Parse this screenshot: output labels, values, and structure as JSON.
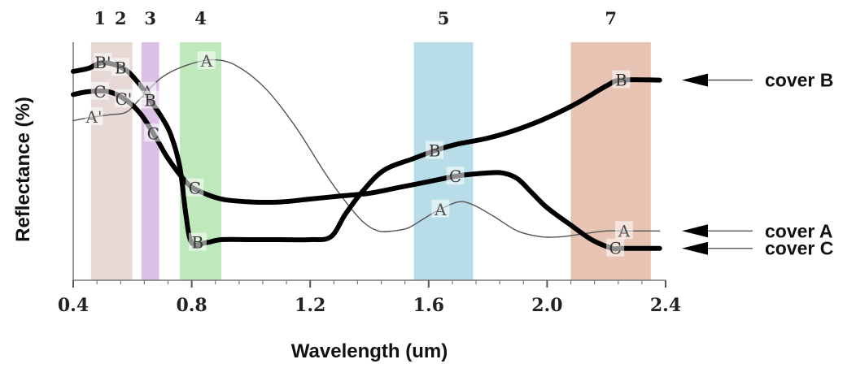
{
  "chart_data": {
    "type": "line",
    "xlabel": "Wavelength (um)",
    "ylabel": "Reflectance (%)",
    "xlim": [
      0.4,
      2.4
    ],
    "x_ticks": [
      "0.4",
      "0.8",
      "1.2",
      "1.6",
      "2.0",
      "2.4"
    ],
    "grid": false,
    "bands": [
      {
        "label": "1",
        "range": [
          0.46,
          0.52
        ],
        "color": "#e6d9d6"
      },
      {
        "label": "2",
        "range": [
          0.52,
          0.6
        ],
        "color": "#e6d9d6"
      },
      {
        "label": "3",
        "range": [
          0.63,
          0.69
        ],
        "color": "#dcc0e6"
      },
      {
        "label": "4",
        "range": [
          0.76,
          0.9
        ],
        "color": "#bfe8bd"
      },
      {
        "label": "5",
        "range": [
          1.55,
          1.75
        ],
        "color": "#b8dde8"
      },
      {
        "label": "7",
        "range": [
          2.08,
          2.35
        ],
        "color": "#e6c3b3"
      }
    ],
    "series": [
      {
        "name": "cover A",
        "marker": "A",
        "color": "#555555",
        "line_weight": "thin",
        "x": [
          0.4,
          0.45,
          0.52,
          0.58,
          0.63,
          0.7,
          0.78,
          0.87,
          0.95,
          1.05,
          1.15,
          1.25,
          1.32,
          1.38,
          1.43,
          1.48,
          1.53,
          1.58,
          1.63,
          1.7,
          1.75,
          1.82,
          1.9,
          1.98,
          2.05,
          2.12,
          2.2,
          2.28,
          2.38
        ],
        "y": [
          48,
          49,
          50,
          51,
          56,
          63,
          67,
          69,
          67,
          59,
          46,
          30,
          20,
          13,
          10,
          10,
          11,
          14,
          17,
          20,
          19,
          15,
          10,
          8,
          8,
          9,
          10,
          10,
          10
        ]
      },
      {
        "name": "cover B",
        "marker": "B",
        "color": "#000000",
        "line_weight": "thick",
        "x": [
          0.4,
          0.45,
          0.5,
          0.57,
          0.62,
          0.66,
          0.7,
          0.73,
          0.76,
          0.78,
          0.8,
          0.85,
          0.9,
          1.0,
          1.1,
          1.2,
          1.27,
          1.32,
          1.38,
          1.45,
          1.55,
          1.63,
          1.7,
          1.8,
          1.9,
          2.0,
          2.1,
          2.2,
          2.25,
          2.38
        ],
        "y": [
          65,
          66,
          68,
          66,
          61,
          55,
          49,
          43,
          32,
          16,
          6,
          6,
          7,
          7,
          7,
          7,
          8,
          16,
          24,
          31,
          35,
          38,
          40,
          42,
          45,
          49,
          54,
          60,
          62,
          62
        ]
      },
      {
        "name": "cover C",
        "marker": "C",
        "color": "#000000",
        "line_weight": "thick",
        "x": [
          0.4,
          0.45,
          0.52,
          0.58,
          0.63,
          0.68,
          0.72,
          0.78,
          0.82,
          0.9,
          1.0,
          1.1,
          1.2,
          1.3,
          1.4,
          1.5,
          1.6,
          1.7,
          1.8,
          1.85,
          1.9,
          1.95,
          2.0,
          2.08,
          2.15,
          2.22,
          2.25,
          2.38
        ],
        "y": [
          57,
          58,
          58,
          55,
          50,
          42,
          35,
          27,
          24,
          21,
          20,
          20,
          21,
          22,
          23,
          25,
          27,
          29,
          30,
          30,
          28,
          23,
          18,
          12,
          7,
          4,
          4,
          4
        ]
      }
    ],
    "curve_labels": [
      {
        "series": "cover A",
        "text": "A'",
        "x": 0.47
      },
      {
        "series": "cover A",
        "text": "A",
        "x": 0.65
      },
      {
        "series": "cover A",
        "text": "A",
        "x": 0.85
      },
      {
        "series": "cover A",
        "text": "A",
        "x": 1.64
      },
      {
        "series": "cover A",
        "text": "A",
        "x": 2.26
      },
      {
        "series": "cover B",
        "text": "B'",
        "x": 0.5
      },
      {
        "series": "cover B",
        "text": "B",
        "x": 0.56
      },
      {
        "series": "cover B",
        "text": "B",
        "x": 0.66
      },
      {
        "series": "cover B",
        "text": "B",
        "x": 0.82
      },
      {
        "series": "cover B",
        "text": "B",
        "x": 1.62
      },
      {
        "series": "cover B",
        "text": "B",
        "x": 2.25
      },
      {
        "series": "cover C",
        "text": "C",
        "x": 0.49
      },
      {
        "series": "cover C",
        "text": "C'",
        "x": 0.57
      },
      {
        "series": "cover C",
        "text": "C",
        "x": 0.67
      },
      {
        "series": "cover C",
        "text": "C",
        "x": 0.81
      },
      {
        "series": "cover C",
        "text": "C",
        "x": 1.69
      },
      {
        "series": "cover C",
        "text": "C",
        "x": 2.23
      }
    ],
    "legend": [
      {
        "text": "cover B",
        "series": "cover B"
      },
      {
        "text": "cover A",
        "series": "cover A"
      },
      {
        "text": "cover C",
        "series": "cover C"
      }
    ],
    "legend_position": "right"
  }
}
